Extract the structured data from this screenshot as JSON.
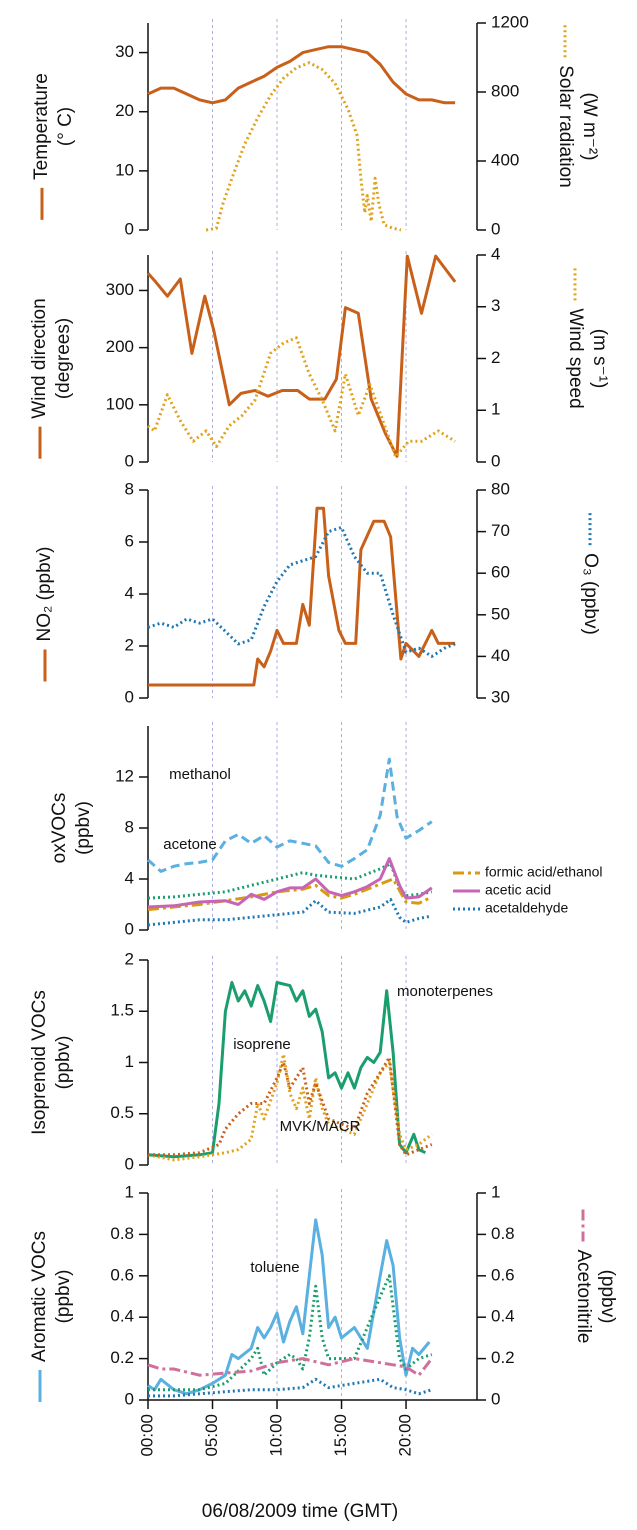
{
  "chart_data": [
    {
      "type": "line",
      "ylabel": [
        "Temperature",
        "(° C)"
      ],
      "ylim": [
        0,
        35
      ],
      "yticks": [
        0,
        10,
        20,
        30
      ],
      "y2label": [
        "Solar radiation",
        "(W m⁻²)"
      ],
      "y2lim": [
        0,
        1200
      ],
      "y2ticks": [
        0,
        400,
        800,
        1200
      ],
      "series": [
        {
          "color": "#c8601a",
          "style": "solid",
          "x": [
            0,
            1,
            2,
            3,
            4,
            5,
            6,
            7,
            8,
            9,
            10,
            11,
            12,
            13,
            14,
            15,
            16,
            17,
            18,
            19,
            20,
            21,
            22,
            23,
            23.8
          ],
          "values": [
            23,
            24,
            24,
            23,
            22,
            21.5,
            22,
            24,
            25,
            26,
            27.5,
            28.5,
            30,
            30.5,
            31,
            31,
            30.5,
            30,
            28,
            25,
            23,
            22,
            22,
            21.5,
            21.5
          ]
        },
        {
          "color": "#e0a21a",
          "style": "dotted",
          "axis": "y2",
          "x": [
            4.5,
            5.3,
            5.8,
            6.5,
            7.5,
            8.5,
            9.5,
            10.5,
            11.5,
            12.5,
            13.5,
            14.5,
            15.5,
            16.2,
            16.5,
            16.8,
            17,
            17.3,
            17.6,
            17.9,
            18.3,
            19,
            19.6
          ],
          "values": [
            0,
            10,
            150,
            300,
            500,
            650,
            780,
            880,
            940,
            970,
            930,
            850,
            700,
            550,
            300,
            100,
            200,
            50,
            300,
            150,
            30,
            10,
            0
          ]
        }
      ]
    },
    {
      "type": "line",
      "ylabel": [
        "Wind direction",
        "(degrees)"
      ],
      "ylim": [
        0,
        362
      ],
      "yticks": [
        0,
        100,
        200,
        300
      ],
      "y2label": [
        "Wind speed",
        "(m s⁻¹)"
      ],
      "y2lim": [
        0,
        4
      ],
      "y2ticks": [
        0,
        1,
        2,
        3,
        4
      ],
      "series": [
        {
          "color": "#c8601a",
          "style": "solid",
          "x": [
            0,
            0.6,
            1.5,
            2.5,
            3.4,
            4.4,
            5.1,
            6.3,
            7.2,
            8.3,
            9.3,
            10.4,
            11.6,
            12.5,
            13.7,
            14.6,
            15.3,
            16.3,
            17.3,
            18.4,
            19.3,
            20.1,
            21.2,
            22.3,
            23.8
          ],
          "values": [
            330,
            315,
            290,
            320,
            190,
            290,
            230,
            100,
            120,
            125,
            115,
            125,
            125,
            110,
            110,
            145,
            270,
            260,
            110,
            50,
            10,
            360,
            260,
            360,
            315
          ]
        },
        {
          "color": "#e0a21a",
          "style": "dotted",
          "axis": "y2",
          "x": [
            0,
            0.5,
            1.5,
            2.5,
            3.5,
            4.5,
            5.3,
            6.3,
            7.3,
            8.3,
            9.5,
            10.5,
            11.5,
            12.5,
            13.5,
            14.5,
            15.3,
            16.3,
            17.2,
            18.2,
            19.2,
            20.2,
            21.2,
            22.5,
            23.8
          ],
          "values": [
            0.7,
            0.6,
            1.3,
            0.8,
            0.4,
            0.6,
            0.3,
            0.7,
            0.9,
            1.2,
            2.1,
            2.3,
            2.4,
            1.7,
            1.2,
            0.6,
            1.7,
            0.9,
            1.5,
            0.8,
            0.1,
            0.4,
            0.4,
            0.6,
            0.4
          ]
        }
      ]
    },
    {
      "type": "line",
      "ylabel": [
        "NO₂ (ppbv)"
      ],
      "ylim": [
        0,
        8
      ],
      "yticks": [
        0,
        2,
        4,
        6,
        8
      ],
      "y2label": [
        "O₃ (ppbv)"
      ],
      "y2lim": [
        30,
        80
      ],
      "y2ticks": [
        30,
        40,
        50,
        60,
        70,
        80
      ],
      "series": [
        {
          "color": "#c8601a",
          "style": "solid",
          "x": [
            0,
            8.2,
            8.5,
            9,
            9.5,
            10,
            10.5,
            11.5,
            12,
            12.5,
            13.1,
            13.6,
            14,
            14.8,
            15.3,
            16.1,
            16.5,
            17.5,
            18.3,
            18.8,
            19.6,
            20,
            21,
            22,
            22.5,
            23.8
          ],
          "values": [
            0.5,
            0.5,
            1.5,
            1.2,
            1.8,
            2.6,
            2.1,
            2.1,
            3.6,
            2.8,
            7.3,
            7.3,
            4.7,
            2.6,
            2.1,
            2.1,
            5.7,
            6.8,
            6.8,
            6.2,
            1.5,
            2.1,
            1.6,
            2.6,
            2.1,
            2.1
          ]
        },
        {
          "color": "#1f78b4",
          "style": "dotted",
          "axis": "y2",
          "x": [
            0,
            1,
            2,
            3,
            4,
            5,
            6,
            7,
            8,
            9,
            10,
            11,
            12,
            13,
            14,
            15,
            16,
            17,
            18,
            19,
            20,
            21,
            22,
            23,
            23.8
          ],
          "values": [
            47,
            48,
            47,
            49,
            48,
            49,
            46,
            43,
            44,
            52,
            58,
            62,
            63,
            64,
            70,
            71,
            64,
            60,
            60,
            50,
            41,
            42,
            40,
            42,
            43
          ]
        }
      ]
    },
    {
      "type": "line",
      "ylabel": [
        "oxVOCs",
        "(ppbv)"
      ],
      "ylim": [
        0,
        16
      ],
      "yticks": [
        0,
        4,
        8,
        12
      ],
      "legend": "right",
      "series": [
        {
          "name": "methanol",
          "inline": true,
          "color": "#5ab0e0",
          "style": "dashed",
          "x": [
            0,
            1,
            2,
            3,
            4,
            5,
            6,
            7,
            8,
            9,
            10,
            11,
            12,
            13,
            14,
            15,
            16,
            17,
            18,
            18.7,
            19.3,
            20,
            21,
            22
          ],
          "values": [
            5.5,
            4.6,
            5.0,
            5.2,
            5.3,
            5.5,
            7.0,
            7.5,
            6.8,
            7.4,
            6.5,
            7.0,
            6.8,
            6.6,
            5.3,
            5.0,
            5.6,
            6.3,
            9.0,
            13.4,
            8.9,
            7.2,
            7.8,
            8.5
          ]
        },
        {
          "name": "acetone",
          "inline": true,
          "color": "#1a9e6e",
          "style": "dotted",
          "x": [
            0,
            2,
            4,
            6,
            8,
            10,
            12,
            13,
            14,
            16,
            18,
            18.8,
            19.5,
            20,
            21,
            22
          ],
          "values": [
            2.5,
            2.6,
            2.8,
            3.0,
            3.5,
            4.0,
            4.5,
            4.3,
            4.2,
            4.0,
            4.8,
            5.2,
            3.3,
            2.7,
            2.8,
            3.0
          ]
        },
        {
          "name": "formic acid/ethanol",
          "color": "#d89a10",
          "style": "dashdot",
          "x": [
            0,
            2,
            4,
            6,
            8,
            10,
            12,
            13,
            14,
            15,
            16,
            18,
            19,
            20,
            21,
            22
          ],
          "values": [
            1.6,
            1.8,
            2.0,
            2.3,
            2.6,
            3.0,
            3.2,
            3.5,
            2.7,
            2.5,
            2.8,
            3.6,
            4.0,
            2.2,
            2.1,
            2.6
          ]
        },
        {
          "name": "acetic acid",
          "color": "#c864b4",
          "style": "solid",
          "x": [
            0,
            2,
            4,
            6,
            7,
            8,
            9,
            10,
            11,
            12,
            13,
            14,
            15,
            16,
            17,
            18,
            18.7,
            19.5,
            20,
            21,
            22
          ],
          "values": [
            1.8,
            1.9,
            2.2,
            2.3,
            2.0,
            2.8,
            2.4,
            3.0,
            3.3,
            3.3,
            4.0,
            3.0,
            2.7,
            3.0,
            3.4,
            4.0,
            5.6,
            3.5,
            2.5,
            2.6,
            3.3
          ]
        },
        {
          "name": "acetaldehyde",
          "color": "#1f78b4",
          "style": "dotted",
          "x": [
            0,
            2,
            4,
            6,
            8,
            10,
            12,
            13,
            14,
            16,
            18,
            18.8,
            19.5,
            20,
            21,
            22
          ],
          "values": [
            0.4,
            0.6,
            0.8,
            0.8,
            1.0,
            1.2,
            1.4,
            2.3,
            1.4,
            1.3,
            1.8,
            2.4,
            1.0,
            0.6,
            0.9,
            1.1
          ]
        }
      ]
    },
    {
      "type": "line",
      "ylabel": [
        "Isoprenoid VOCs",
        "(ppbv)"
      ],
      "ylim": [
        0,
        2
      ],
      "yticks": [
        0,
        0.5,
        1,
        1.5,
        2
      ],
      "series": [
        {
          "name": "monoterpenes",
          "inline": true,
          "color": "#1a9e6e",
          "style": "solid",
          "x": [
            0,
            2,
            4,
            5,
            5.5,
            6,
            6.5,
            7,
            7.5,
            8,
            8.5,
            9,
            9.5,
            10,
            11,
            11.5,
            12,
            12.5,
            13,
            13.5,
            14,
            14.5,
            15,
            15.5,
            16,
            16.5,
            17,
            17.5,
            18,
            18.5,
            19,
            19.5,
            20,
            20.6,
            21,
            21.5
          ],
          "values": [
            0.1,
            0.08,
            0.1,
            0.12,
            0.6,
            1.5,
            1.78,
            1.6,
            1.7,
            1.55,
            1.75,
            1.6,
            1.4,
            1.78,
            1.75,
            1.6,
            1.7,
            1.45,
            1.52,
            1.3,
            0.85,
            0.9,
            0.75,
            0.9,
            0.75,
            0.95,
            1.05,
            1.0,
            1.1,
            1.7,
            1.1,
            0.2,
            0.12,
            0.3,
            0.15,
            0.12
          ]
        },
        {
          "name": "isoprene",
          "inline": true,
          "color": "#e0a21a",
          "style": "dotted",
          "x": [
            0,
            2,
            4,
            6,
            7,
            8,
            8.5,
            9,
            10,
            10.5,
            11,
            11.5,
            12,
            12.5,
            13,
            13.5,
            14,
            15,
            16,
            17,
            18,
            18.7,
            19.5,
            20,
            21,
            22
          ],
          "values": [
            0.1,
            0.05,
            0.08,
            0.12,
            0.15,
            0.25,
            0.6,
            0.45,
            0.8,
            1.08,
            0.7,
            0.55,
            0.75,
            0.45,
            0.85,
            0.55,
            0.4,
            0.35,
            0.3,
            0.6,
            0.9,
            1.0,
            0.3,
            0.15,
            0.2,
            0.3
          ]
        },
        {
          "name": "MVK/MACR",
          "inline": true,
          "color": "#c8601a",
          "style": "dotted",
          "x": [
            0,
            2,
            4,
            5.5,
            6,
            7,
            8,
            9,
            10,
            10.5,
            11,
            12,
            12.5,
            13,
            14,
            15,
            16,
            17,
            18,
            18.7,
            19.5,
            20,
            21,
            22
          ],
          "values": [
            0.1,
            0.1,
            0.12,
            0.2,
            0.35,
            0.5,
            0.6,
            0.6,
            0.85,
            1.0,
            0.75,
            0.95,
            0.6,
            0.8,
            0.45,
            0.4,
            0.35,
            0.7,
            0.9,
            1.05,
            0.2,
            0.1,
            0.15,
            0.2
          ]
        }
      ]
    },
    {
      "type": "line",
      "ylabel": [
        "Aromatic VOCs",
        "(ppbv)"
      ],
      "ylim": [
        0,
        1
      ],
      "yticks": [
        0,
        0.2,
        0.4,
        0.6,
        0.8,
        1
      ],
      "y2label": [
        "Acetonitrile",
        "(ppbv)"
      ],
      "y2lim": [
        0,
        1
      ],
      "y2ticks": [
        0,
        0.2,
        0.4,
        0.6,
        0.8,
        1
      ],
      "xlabel": "06/08/2009 time (GMT)",
      "xlim": [
        0,
        25.5
      ],
      "xticks": [
        {
          "value": 0,
          "label": "00:00"
        },
        {
          "value": 5,
          "label": "05:00"
        },
        {
          "value": 10,
          "label": "10:00"
        },
        {
          "value": 15,
          "label": "15:00"
        },
        {
          "value": 20,
          "label": "20:00"
        }
      ],
      "grid": true,
      "series": [
        {
          "name": "toluene",
          "inline": true,
          "color": "#5ab0e0",
          "style": "solid",
          "x": [
            0,
            0.5,
            1,
            2,
            3,
            4,
            5,
            6,
            6.5,
            7,
            8,
            8.5,
            9,
            9.5,
            10,
            10.5,
            11,
            11.5,
            12,
            12.5,
            13,
            13.5,
            14,
            14.5,
            15,
            16,
            17,
            18,
            18.5,
            19,
            19.5,
            20,
            20.5,
            21,
            21.8
          ],
          "values": [
            0.07,
            0.05,
            0.1,
            0.05,
            0.03,
            0.05,
            0.08,
            0.12,
            0.22,
            0.2,
            0.25,
            0.35,
            0.3,
            0.35,
            0.42,
            0.28,
            0.38,
            0.45,
            0.32,
            0.6,
            0.87,
            0.7,
            0.35,
            0.4,
            0.3,
            0.35,
            0.25,
            0.6,
            0.77,
            0.65,
            0.3,
            0.12,
            0.25,
            0.22,
            0.28
          ]
        },
        {
          "color": "#1a9e6e",
          "style": "dotted",
          "x": [
            0,
            2,
            4,
            6,
            8,
            8.5,
            9,
            10,
            11,
            11.5,
            12,
            12.5,
            13,
            13.5,
            14,
            15,
            16,
            17,
            18,
            18.7,
            19.5,
            20,
            21,
            22
          ],
          "values": [
            0.05,
            0.05,
            0.05,
            0.08,
            0.2,
            0.25,
            0.12,
            0.18,
            0.22,
            0.2,
            0.15,
            0.3,
            0.55,
            0.3,
            0.2,
            0.2,
            0.2,
            0.35,
            0.5,
            0.6,
            0.2,
            0.15,
            0.2,
            0.22
          ]
        },
        {
          "color": "#1f78b4",
          "style": "dotted",
          "x": [
            0,
            2,
            4,
            6,
            8,
            10,
            12,
            13,
            14,
            16,
            18,
            19,
            20,
            21,
            22
          ],
          "values": [
            0.02,
            0.02,
            0.03,
            0.04,
            0.05,
            0.05,
            0.06,
            0.1,
            0.06,
            0.08,
            0.1,
            0.06,
            0.05,
            0.03,
            0.05
          ]
        },
        {
          "color": "#d0709a",
          "style": "dashdot",
          "axis": "y2",
          "x": [
            0,
            1,
            2,
            4,
            6,
            8,
            10,
            12,
            14,
            16,
            18,
            19,
            20,
            21,
            22
          ],
          "values": [
            0.17,
            0.15,
            0.15,
            0.12,
            0.13,
            0.14,
            0.18,
            0.2,
            0.17,
            0.2,
            0.18,
            0.17,
            0.16,
            0.12,
            0.2
          ]
        }
      ]
    }
  ]
}
